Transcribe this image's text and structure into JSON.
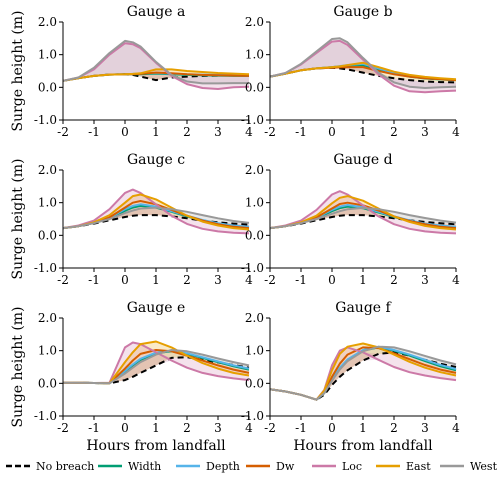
{
  "chart_data": [
    {
      "type": "line",
      "title": "Gauge a",
      "ylabel": "Surge height (m)",
      "xlabel": "",
      "xlim": [
        -2,
        4
      ],
      "ylim": [
        -1.0,
        2.0
      ],
      "xticks": [
        "-2",
        "-1",
        "0",
        "1",
        "2",
        "3",
        "4"
      ],
      "yticks": [
        "-1.0",
        "0.0",
        "1.0",
        "2.0"
      ],
      "x": [
        -2,
        -1.5,
        -1,
        -0.5,
        0,
        0.25,
        0.5,
        1,
        1.5,
        2,
        2.5,
        3,
        3.5,
        4
      ],
      "series": [
        {
          "name": "No breach",
          "values": [
            0.2,
            0.28,
            0.35,
            0.39,
            0.4,
            0.38,
            0.33,
            0.22,
            0.3,
            0.33,
            0.35,
            0.36,
            0.37,
            0.37
          ]
        },
        {
          "name": "Width",
          "values": [
            0.2,
            0.28,
            0.35,
            0.39,
            0.4,
            0.4,
            0.4,
            0.42,
            0.4,
            0.38,
            0.37,
            0.36,
            0.35,
            0.35
          ]
        },
        {
          "name": "Depth",
          "values": [
            0.2,
            0.28,
            0.35,
            0.39,
            0.4,
            0.41,
            0.42,
            0.44,
            0.42,
            0.4,
            0.39,
            0.38,
            0.37,
            0.36
          ]
        },
        {
          "name": "Dw",
          "values": [
            0.2,
            0.28,
            0.35,
            0.39,
            0.4,
            0.4,
            0.41,
            0.45,
            0.43,
            0.4,
            0.38,
            0.37,
            0.36,
            0.35
          ]
        },
        {
          "name": "Loc",
          "values": [
            0.2,
            0.3,
            0.55,
            1.0,
            1.35,
            1.32,
            1.2,
            0.75,
            0.35,
            0.1,
            -0.02,
            -0.05,
            0.0,
            0.02
          ]
        },
        {
          "name": "East",
          "values": [
            0.2,
            0.28,
            0.35,
            0.39,
            0.4,
            0.41,
            0.43,
            0.55,
            0.55,
            0.5,
            0.47,
            0.44,
            0.42,
            0.4
          ]
        },
        {
          "name": "West",
          "values": [
            0.2,
            0.3,
            0.6,
            1.05,
            1.42,
            1.38,
            1.25,
            0.78,
            0.38,
            0.18,
            0.12,
            0.12,
            0.13,
            0.13
          ]
        }
      ]
    },
    {
      "type": "line",
      "title": "Gauge b",
      "ylabel": "",
      "xlabel": "",
      "xlim": [
        -2,
        4
      ],
      "ylim": [
        -1.0,
        2.0
      ],
      "xticks": [
        "-2",
        "-1",
        "0",
        "1",
        "2",
        "3",
        "4"
      ],
      "yticks": [
        "-1.0",
        "0.0",
        "1.0",
        "2.0"
      ],
      "x": [
        -2,
        -1.5,
        -1,
        -0.5,
        0,
        0.25,
        0.5,
        1,
        1.5,
        2,
        2.5,
        3,
        3.5,
        4
      ],
      "series": [
        {
          "name": "No breach",
          "values": [
            0.33,
            0.42,
            0.52,
            0.58,
            0.6,
            0.58,
            0.55,
            0.45,
            0.35,
            0.28,
            0.22,
            0.18,
            0.16,
            0.15
          ]
        },
        {
          "name": "Width",
          "values": [
            0.33,
            0.42,
            0.52,
            0.58,
            0.62,
            0.64,
            0.66,
            0.68,
            0.55,
            0.42,
            0.33,
            0.27,
            0.24,
            0.22
          ]
        },
        {
          "name": "Depth",
          "values": [
            0.33,
            0.42,
            0.52,
            0.58,
            0.62,
            0.65,
            0.68,
            0.72,
            0.58,
            0.44,
            0.35,
            0.29,
            0.25,
            0.23
          ]
        },
        {
          "name": "Dw",
          "values": [
            0.33,
            0.42,
            0.52,
            0.58,
            0.6,
            0.61,
            0.62,
            0.62,
            0.5,
            0.4,
            0.33,
            0.28,
            0.25,
            0.22
          ]
        },
        {
          "name": "Loc",
          "values": [
            0.33,
            0.44,
            0.7,
            1.05,
            1.4,
            1.42,
            1.3,
            0.85,
            0.4,
            0.05,
            -0.12,
            -0.15,
            -0.12,
            -0.1
          ]
        },
        {
          "name": "East",
          "values": [
            0.33,
            0.42,
            0.52,
            0.58,
            0.62,
            0.64,
            0.68,
            0.75,
            0.62,
            0.48,
            0.38,
            0.32,
            0.28,
            0.25
          ]
        },
        {
          "name": "West",
          "values": [
            0.33,
            0.44,
            0.72,
            1.1,
            1.48,
            1.5,
            1.38,
            0.9,
            0.45,
            0.15,
            0.02,
            -0.02,
            0.0,
            0.02
          ]
        }
      ]
    },
    {
      "type": "line",
      "title": "Gauge c",
      "ylabel": "Surge height (m)",
      "xlabel": "",
      "xlim": [
        -2,
        4
      ],
      "ylim": [
        -1.0,
        2.0
      ],
      "xticks": [
        "-2",
        "-1",
        "0",
        "1",
        "2",
        "3",
        "4"
      ],
      "yticks": [
        "-1.0",
        "0.0",
        "1.0",
        "2.0"
      ],
      "x": [
        -2,
        -1.5,
        -1,
        -0.5,
        0,
        0.25,
        0.5,
        1,
        1.5,
        2,
        2.5,
        3,
        3.5,
        4
      ],
      "series": [
        {
          "name": "No breach",
          "values": [
            0.22,
            0.28,
            0.36,
            0.46,
            0.56,
            0.6,
            0.62,
            0.62,
            0.58,
            0.52,
            0.45,
            0.4,
            0.36,
            0.33
          ]
        },
        {
          "name": "Width",
          "values": [
            0.22,
            0.28,
            0.38,
            0.52,
            0.75,
            0.85,
            0.9,
            0.85,
            0.72,
            0.58,
            0.45,
            0.35,
            0.28,
            0.24
          ]
        },
        {
          "name": "Depth",
          "values": [
            0.22,
            0.28,
            0.38,
            0.54,
            0.8,
            0.9,
            0.95,
            0.88,
            0.74,
            0.6,
            0.47,
            0.37,
            0.3,
            0.26
          ]
        },
        {
          "name": "Dw",
          "values": [
            0.22,
            0.28,
            0.38,
            0.55,
            0.85,
            1.0,
            1.05,
            0.95,
            0.78,
            0.6,
            0.45,
            0.34,
            0.26,
            0.22
          ]
        },
        {
          "name": "Loc",
          "values": [
            0.22,
            0.3,
            0.45,
            0.8,
            1.3,
            1.4,
            1.3,
            0.95,
            0.6,
            0.35,
            0.2,
            0.12,
            0.08,
            0.06
          ]
        },
        {
          "name": "East",
          "values": [
            0.22,
            0.28,
            0.4,
            0.62,
            1.0,
            1.2,
            1.25,
            1.1,
            0.85,
            0.6,
            0.42,
            0.3,
            0.22,
            0.18
          ]
        },
        {
          "name": "West",
          "values": [
            0.22,
            0.28,
            0.37,
            0.5,
            0.68,
            0.76,
            0.82,
            0.85,
            0.8,
            0.72,
            0.62,
            0.52,
            0.44,
            0.38
          ]
        }
      ]
    },
    {
      "type": "line",
      "title": "Gauge d",
      "ylabel": "",
      "xlabel": "",
      "xlim": [
        -2,
        4
      ],
      "ylim": [
        -1.0,
        2.0
      ],
      "xticks": [
        "-2",
        "-1",
        "0",
        "1",
        "2",
        "3",
        "4"
      ],
      "yticks": [
        "-1.0",
        "0.0",
        "1.0",
        "2.0"
      ],
      "x": [
        -2,
        -1.5,
        -1,
        -0.5,
        0,
        0.25,
        0.5,
        1,
        1.5,
        2,
        2.5,
        3,
        3.5,
        4
      ],
      "series": [
        {
          "name": "No breach",
          "values": [
            0.22,
            0.28,
            0.36,
            0.46,
            0.56,
            0.6,
            0.62,
            0.62,
            0.58,
            0.52,
            0.46,
            0.41,
            0.37,
            0.34
          ]
        },
        {
          "name": "Width",
          "values": [
            0.22,
            0.28,
            0.38,
            0.52,
            0.74,
            0.83,
            0.88,
            0.83,
            0.7,
            0.56,
            0.44,
            0.35,
            0.28,
            0.24
          ]
        },
        {
          "name": "Depth",
          "values": [
            0.22,
            0.28,
            0.38,
            0.54,
            0.78,
            0.88,
            0.93,
            0.86,
            0.72,
            0.58,
            0.46,
            0.36,
            0.3,
            0.26
          ]
        },
        {
          "name": "Dw",
          "values": [
            0.22,
            0.28,
            0.38,
            0.55,
            0.82,
            0.96,
            1.0,
            0.92,
            0.76,
            0.58,
            0.44,
            0.34,
            0.26,
            0.22
          ]
        },
        {
          "name": "Loc",
          "values": [
            0.22,
            0.3,
            0.45,
            0.78,
            1.25,
            1.35,
            1.25,
            0.92,
            0.58,
            0.34,
            0.2,
            0.12,
            0.08,
            0.06
          ]
        },
        {
          "name": "East",
          "values": [
            0.22,
            0.28,
            0.4,
            0.6,
            0.98,
            1.15,
            1.2,
            1.06,
            0.82,
            0.58,
            0.41,
            0.29,
            0.22,
            0.18
          ]
        },
        {
          "name": "West",
          "values": [
            0.22,
            0.28,
            0.37,
            0.5,
            0.66,
            0.74,
            0.8,
            0.84,
            0.8,
            0.72,
            0.62,
            0.53,
            0.45,
            0.39
          ]
        }
      ]
    },
    {
      "type": "line",
      "title": "Gauge e",
      "ylabel": "Surge height (m)",
      "xlabel": "Hours from landfall",
      "xlim": [
        -2,
        4
      ],
      "ylim": [
        -1.0,
        2.0
      ],
      "xticks": [
        "-2",
        "-1",
        "0",
        "1",
        "2",
        "3",
        "4"
      ],
      "yticks": [
        "-1.0",
        "0.0",
        "1.0",
        "2.0"
      ],
      "x": [
        -2,
        -1.5,
        -1,
        -0.5,
        0,
        0.25,
        0.5,
        1,
        1.5,
        2,
        2.5,
        3,
        3.5,
        4
      ],
      "series": [
        {
          "name": "No breach",
          "values": [
            0.02,
            0.02,
            0.01,
            0.0,
            0.1,
            0.2,
            0.32,
            0.55,
            0.78,
            0.8,
            0.72,
            0.64,
            0.56,
            0.48
          ]
        },
        {
          "name": "Width",
          "values": [
            0.02,
            0.02,
            0.01,
            0.0,
            0.35,
            0.55,
            0.72,
            0.92,
            0.98,
            0.9,
            0.78,
            0.65,
            0.52,
            0.42
          ]
        },
        {
          "name": "Depth",
          "values": [
            0.02,
            0.02,
            0.01,
            0.0,
            0.38,
            0.58,
            0.75,
            0.94,
            1.0,
            0.92,
            0.8,
            0.67,
            0.55,
            0.45
          ]
        },
        {
          "name": "Dw",
          "values": [
            0.02,
            0.02,
            0.01,
            0.0,
            0.45,
            0.7,
            0.9,
            1.02,
            0.98,
            0.85,
            0.7,
            0.55,
            0.42,
            0.32
          ]
        },
        {
          "name": "Loc",
          "values": [
            0.02,
            0.02,
            0.01,
            0.02,
            1.1,
            1.25,
            1.2,
            0.95,
            0.7,
            0.48,
            0.32,
            0.22,
            0.15,
            0.1
          ]
        },
        {
          "name": "East",
          "values": [
            0.02,
            0.02,
            0.01,
            0.0,
            0.65,
            0.95,
            1.2,
            1.28,
            1.1,
            0.85,
            0.62,
            0.45,
            0.32,
            0.24
          ]
        },
        {
          "name": "West",
          "values": [
            0.02,
            0.02,
            0.01,
            0.0,
            0.3,
            0.48,
            0.65,
            0.88,
            1.02,
            0.98,
            0.88,
            0.76,
            0.65,
            0.55
          ]
        }
      ]
    },
    {
      "type": "line",
      "title": "Gauge f",
      "ylabel": "",
      "xlabel": "Hours from landfall",
      "xlim": [
        -2,
        4
      ],
      "ylim": [
        -1.0,
        2.0
      ],
      "xticks": [
        "-2",
        "-1",
        "0",
        "1",
        "2",
        "3",
        "4"
      ],
      "yticks": [
        "-1.0",
        "0.0",
        "1.0",
        "2.0"
      ],
      "x": [
        -2,
        -1.5,
        -1,
        -0.5,
        -0.25,
        0,
        0.25,
        0.5,
        1,
        1.5,
        2,
        2.5,
        3,
        3.5,
        4
      ],
      "series": [
        {
          "name": "No breach",
          "values": [
            -0.18,
            -0.25,
            -0.35,
            -0.5,
            -0.35,
            -0.05,
            0.2,
            0.4,
            0.7,
            0.9,
            0.95,
            0.85,
            0.72,
            0.6,
            0.5
          ]
        },
        {
          "name": "Width",
          "values": [
            -0.18,
            -0.25,
            -0.35,
            -0.5,
            -0.3,
            0.1,
            0.45,
            0.7,
            1.0,
            1.1,
            1.0,
            0.85,
            0.68,
            0.52,
            0.4
          ]
        },
        {
          "name": "Depth",
          "values": [
            -0.18,
            -0.25,
            -0.35,
            -0.5,
            -0.3,
            0.12,
            0.48,
            0.73,
            1.02,
            1.12,
            1.02,
            0.88,
            0.72,
            0.56,
            0.44
          ]
        },
        {
          "name": "Dw",
          "values": [
            -0.18,
            -0.25,
            -0.35,
            -0.5,
            -0.28,
            0.2,
            0.6,
            0.88,
            1.1,
            1.08,
            0.92,
            0.74,
            0.56,
            0.42,
            0.32
          ]
        },
        {
          "name": "Loc",
          "values": [
            -0.18,
            -0.25,
            -0.35,
            -0.5,
            -0.2,
            0.55,
            1.0,
            1.1,
            0.95,
            0.72,
            0.5,
            0.34,
            0.24,
            0.16,
            0.1
          ]
        },
        {
          "name": "East",
          "values": [
            -0.18,
            -0.25,
            -0.35,
            -0.5,
            -0.22,
            0.4,
            0.9,
            1.12,
            1.22,
            1.1,
            0.88,
            0.66,
            0.48,
            0.34,
            0.24
          ]
        },
        {
          "name": "West",
          "values": [
            -0.18,
            -0.25,
            -0.35,
            -0.5,
            -0.3,
            0.08,
            0.42,
            0.68,
            0.98,
            1.12,
            1.1,
            0.98,
            0.84,
            0.7,
            0.58
          ]
        }
      ]
    }
  ],
  "legend": {
    "placement": "bottom",
    "items": [
      {
        "label": "No breach",
        "color": "#000000",
        "dashed": true
      },
      {
        "label": "Width",
        "color": "#009e73",
        "dashed": false
      },
      {
        "label": "Depth",
        "color": "#56b4e9",
        "dashed": false
      },
      {
        "label": "Dw",
        "color": "#d55e00",
        "dashed": false
      },
      {
        "label": "Loc",
        "color": "#cc79a7",
        "dashed": false
      },
      {
        "label": "East",
        "color": "#e69f00",
        "dashed": false
      },
      {
        "label": "West",
        "color": "#999999",
        "dashed": false
      }
    ]
  }
}
